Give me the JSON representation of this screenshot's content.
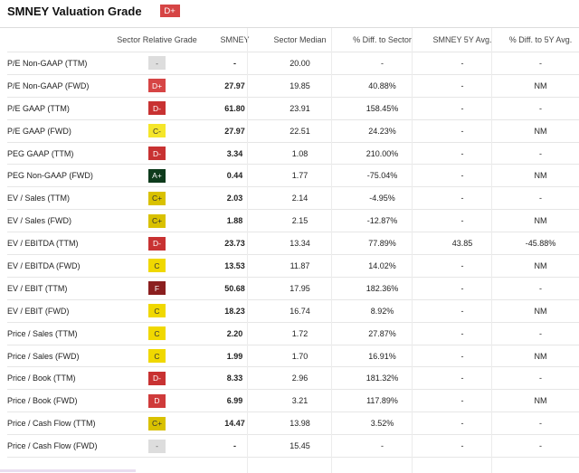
{
  "header": {
    "title": "SMNEY Valuation Grade",
    "overall_grade": "D+",
    "overall_color": "#d64545"
  },
  "columns": [
    "",
    "Sector Relative Grade",
    "SMNEY",
    "Sector Median",
    "% Diff. to Sector",
    "SMNEY 5Y Avg.",
    "% Diff. to 5Y Avg."
  ],
  "grade_colors": {
    "-": {
      "bg": "#dddddd",
      "fg": "#555555"
    },
    "D+": {
      "bg": "#d64545",
      "fg": "#ffffff"
    },
    "D-": {
      "bg": "#c83232",
      "fg": "#ffffff"
    },
    "D": {
      "bg": "#cf3b3b",
      "fg": "#ffffff"
    },
    "C-": {
      "bg": "#f5e62a",
      "fg": "#333333"
    },
    "C": {
      "bg": "#f0d800",
      "fg": "#333333"
    },
    "C+": {
      "bg": "#d9c100",
      "fg": "#333333"
    },
    "A+": {
      "bg": "#0e3b1c",
      "fg": "#ffffff"
    },
    "F": {
      "bg": "#8b1f1f",
      "fg": "#ffffff"
    }
  },
  "rows": [
    {
      "metric": "P/E Non-GAAP (TTM)",
      "grade": "-",
      "smney": "-",
      "sector_median": "20.00",
      "diff_sector": "-",
      "avg5y": "-",
      "diff_5y": "-"
    },
    {
      "metric": "P/E Non-GAAP (FWD)",
      "grade": "D+",
      "smney": "27.97",
      "sector_median": "19.85",
      "diff_sector": "40.88%",
      "avg5y": "-",
      "diff_5y": "NM"
    },
    {
      "metric": "P/E GAAP (TTM)",
      "grade": "D-",
      "smney": "61.80",
      "sector_median": "23.91",
      "diff_sector": "158.45%",
      "avg5y": "-",
      "diff_5y": "-"
    },
    {
      "metric": "P/E GAAP (FWD)",
      "grade": "C-",
      "smney": "27.97",
      "sector_median": "22.51",
      "diff_sector": "24.23%",
      "avg5y": "-",
      "diff_5y": "NM"
    },
    {
      "metric": "PEG GAAP (TTM)",
      "grade": "D-",
      "smney": "3.34",
      "sector_median": "1.08",
      "diff_sector": "210.00%",
      "avg5y": "-",
      "diff_5y": "-"
    },
    {
      "metric": "PEG Non-GAAP (FWD)",
      "grade": "A+",
      "smney": "0.44",
      "sector_median": "1.77",
      "diff_sector": "-75.04%",
      "avg5y": "-",
      "diff_5y": "NM"
    },
    {
      "metric": "EV / Sales (TTM)",
      "grade": "C+",
      "smney": "2.03",
      "sector_median": "2.14",
      "diff_sector": "-4.95%",
      "avg5y": "-",
      "diff_5y": "-"
    },
    {
      "metric": "EV / Sales (FWD)",
      "grade": "C+",
      "smney": "1.88",
      "sector_median": "2.15",
      "diff_sector": "-12.87%",
      "avg5y": "-",
      "diff_5y": "NM"
    },
    {
      "metric": "EV / EBITDA (TTM)",
      "grade": "D-",
      "smney": "23.73",
      "sector_median": "13.34",
      "diff_sector": "77.89%",
      "avg5y": "43.85",
      "diff_5y": "-45.88%"
    },
    {
      "metric": "EV / EBITDA (FWD)",
      "grade": "C",
      "smney": "13.53",
      "sector_median": "11.87",
      "diff_sector": "14.02%",
      "avg5y": "-",
      "diff_5y": "NM"
    },
    {
      "metric": "EV / EBIT (TTM)",
      "grade": "F",
      "smney": "50.68",
      "sector_median": "17.95",
      "diff_sector": "182.36%",
      "avg5y": "-",
      "diff_5y": "-"
    },
    {
      "metric": "EV / EBIT (FWD)",
      "grade": "C",
      "smney": "18.23",
      "sector_median": "16.74",
      "diff_sector": "8.92%",
      "avg5y": "-",
      "diff_5y": "NM"
    },
    {
      "metric": "Price / Sales (TTM)",
      "grade": "C",
      "smney": "2.20",
      "sector_median": "1.72",
      "diff_sector": "27.87%",
      "avg5y": "-",
      "diff_5y": "-"
    },
    {
      "metric": "Price / Sales (FWD)",
      "grade": "C",
      "smney": "1.99",
      "sector_median": "1.70",
      "diff_sector": "16.91%",
      "avg5y": "-",
      "diff_5y": "NM"
    },
    {
      "metric": "Price / Book (TTM)",
      "grade": "D-",
      "smney": "8.33",
      "sector_median": "2.96",
      "diff_sector": "181.32%",
      "avg5y": "-",
      "diff_5y": "-"
    },
    {
      "metric": "Price / Book (FWD)",
      "grade": "D",
      "smney": "6.99",
      "sector_median": "3.21",
      "diff_sector": "117.89%",
      "avg5y": "-",
      "diff_5y": "NM"
    },
    {
      "metric": "Price / Cash Flow (TTM)",
      "grade": "C+",
      "smney": "14.47",
      "sector_median": "13.98",
      "diff_sector": "3.52%",
      "avg5y": "-",
      "diff_5y": "-"
    },
    {
      "metric": "Price / Cash Flow (FWD)",
      "grade": "-",
      "smney": "-",
      "sector_median": "15.45",
      "diff_sector": "-",
      "avg5y": "-",
      "diff_5y": "-"
    }
  ]
}
